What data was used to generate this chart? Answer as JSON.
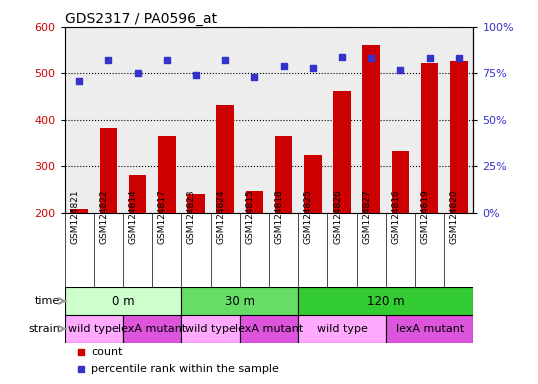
{
  "title": "GDS2317 / PA0596_at",
  "samples": [
    "GSM124821",
    "GSM124822",
    "GSM124814",
    "GSM124817",
    "GSM124823",
    "GSM124824",
    "GSM124815",
    "GSM124818",
    "GSM124825",
    "GSM124826",
    "GSM124827",
    "GSM124816",
    "GSM124819",
    "GSM124820"
  ],
  "counts": [
    208,
    382,
    282,
    365,
    240,
    432,
    247,
    365,
    324,
    462,
    562,
    332,
    522,
    527
  ],
  "percentile_ranks": [
    71,
    82,
    75,
    82,
    74,
    82,
    73,
    79,
    78,
    84,
    83,
    77,
    83,
    83
  ],
  "bar_color": "#cc0000",
  "dot_color": "#3333cc",
  "ylim_left": [
    200,
    600
  ],
  "ylim_right": [
    0,
    100
  ],
  "yticks_left": [
    200,
    300,
    400,
    500,
    600
  ],
  "yticks_right": [
    0,
    25,
    50,
    75,
    100
  ],
  "time_groups": [
    {
      "label": "0 m",
      "start": 0,
      "end": 4,
      "color": "#ccffcc"
    },
    {
      "label": "30 m",
      "start": 4,
      "end": 8,
      "color": "#66dd66"
    },
    {
      "label": "120 m",
      "start": 8,
      "end": 14,
      "color": "#33cc33"
    }
  ],
  "strain_groups": [
    {
      "label": "wild type",
      "start": 0,
      "end": 2,
      "color": "#ffaaff"
    },
    {
      "label": "lexA mutant",
      "start": 2,
      "end": 4,
      "color": "#dd55dd"
    },
    {
      "label": "wild type",
      "start": 4,
      "end": 6,
      "color": "#ffaaff"
    },
    {
      "label": "lexA mutant",
      "start": 6,
      "end": 8,
      "color": "#dd55dd"
    },
    {
      "label": "wild type",
      "start": 8,
      "end": 11,
      "color": "#ffaaff"
    },
    {
      "label": "lexA mutant",
      "start": 11,
      "end": 14,
      "color": "#dd55dd"
    }
  ],
  "row_label_time": "time",
  "row_label_strain": "strain",
  "legend_count_label": "count",
  "legend_pct_label": "percentile rank within the sample",
  "bar_bottom": 200,
  "tick_label_color_left": "#cc0000",
  "tick_label_color_right": "#3333cc",
  "background_color": "#ffffff",
  "sample_bg_color": "#cccccc",
  "label_arrow_color": "#999999"
}
